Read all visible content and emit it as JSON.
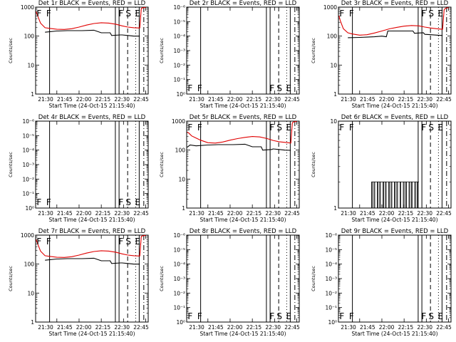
{
  "figure": {
    "x_label": "Start Time (24-Oct-15 21:15:40)",
    "y_label": "Counts/sec",
    "x_tick_labels": [
      "21:30",
      "21:45",
      "22:00",
      "22:15",
      "22:30",
      "22:45"
    ],
    "event_markers": [
      "F",
      "F",
      "F",
      "S",
      "E"
    ]
  },
  "chart_data": [
    {
      "type": "line",
      "title": "Det 1r BLACK = Events, RED = LLD",
      "y_scale": "log",
      "xlim": [
        15.67,
        91.67
      ],
      "ylim": [
        1,
        1000
      ],
      "y_tick_labels": [
        "1",
        "10",
        "100",
        "1000"
      ],
      "events": {
        "x": [
          22,
          30,
          31,
          37,
          47,
          55,
          60,
          66,
          67,
          73,
          74,
          78,
          82,
          86
        ],
        "y": [
          136,
          150,
          150,
          154,
          154,
          160,
          130,
          130,
          105,
          110,
          110,
          105,
          100,
          100
        ]
      },
      "lld": {
        "x": [
          16,
          17,
          19,
          22,
          25,
          30,
          35,
          40,
          45,
          50,
          55,
          60,
          65,
          70,
          74,
          78,
          82,
          86,
          87,
          88,
          90
        ],
        "y": [
          700,
          500,
          280,
          195,
          185,
          172,
          170,
          180,
          205,
          240,
          272,
          290,
          282,
          255,
          225,
          205,
          195,
          190,
          900,
          950,
          980
        ]
      }
    },
    {
      "type": "line",
      "title": "Det 2r BLACK = Events, RED = LLD",
      "y_scale": "log",
      "xlim": [
        15.67,
        91.67
      ],
      "ylim": [
        1,
        1000000
      ],
      "y_tick_labels": [
        "10⁰",
        "10⁻¹",
        "10⁻²",
        "10⁻³",
        "10⁻⁴",
        "10⁻⁵",
        "10⁻⁶"
      ],
      "events": null,
      "lld": null
    },
    {
      "type": "line",
      "title": "Det 3r BLACK = Events, RED = LLD",
      "y_scale": "log",
      "xlim": [
        15.67,
        91.67
      ],
      "ylim": [
        1,
        1000
      ],
      "y_tick_labels": [
        "1",
        "10",
        "100",
        "1000"
      ],
      "events": {
        "x": [
          22,
          30,
          35,
          40,
          45,
          48,
          49,
          55,
          60,
          66,
          67,
          73,
          74,
          78,
          82,
          86
        ],
        "y": [
          88,
          90,
          92,
          95,
          100,
          95,
          150,
          150,
          150,
          150,
          125,
          130,
          115,
          112,
          108,
          105
        ]
      },
      "lld": {
        "x": [
          16,
          17,
          19,
          22,
          25,
          30,
          35,
          40,
          45,
          50,
          55,
          60,
          65,
          70,
          74,
          78,
          82,
          86,
          87,
          88,
          90
        ],
        "y": [
          500,
          330,
          180,
          130,
          118,
          108,
          112,
          128,
          150,
          178,
          200,
          220,
          232,
          225,
          205,
          190,
          180,
          172,
          800,
          920,
          960
        ]
      }
    },
    {
      "type": "line",
      "title": "Det 4r BLACK = Events, RED = LLD",
      "y_scale": "log",
      "xlim": [
        15.67,
        91.67
      ],
      "ylim": [
        1,
        1000000
      ],
      "y_tick_labels": [
        "10⁰",
        "10⁻¹",
        "10⁻²",
        "10⁻³",
        "10⁻⁴",
        "10⁻⁵",
        "10⁻⁶"
      ],
      "events": null,
      "lld": null
    },
    {
      "type": "line",
      "title": "Det 5r BLACK = Events, RED = LLD",
      "y_scale": "log",
      "xlim": [
        15.67,
        91.67
      ],
      "ylim": [
        1,
        1000
      ],
      "y_tick_labels": [
        "1",
        "10",
        "100",
        "1000"
      ],
      "events": {
        "x": [
          16,
          18,
          22,
          30,
          31,
          37,
          47,
          55,
          60,
          66,
          67,
          73,
          74,
          78,
          82,
          86
        ],
        "y": [
          125,
          150,
          140,
          150,
          150,
          154,
          154,
          160,
          130,
          130,
          100,
          105,
          110,
          105,
          100,
          98
        ]
      },
      "lld": {
        "x": [
          16,
          17,
          19,
          22,
          25,
          30,
          35,
          40,
          45,
          50,
          55,
          60,
          65,
          70,
          74,
          78,
          82,
          86,
          87,
          88,
          90
        ],
        "y": [
          420,
          390,
          310,
          260,
          220,
          180,
          175,
          190,
          220,
          250,
          275,
          295,
          285,
          250,
          215,
          195,
          185,
          175,
          880,
          950,
          980
        ]
      }
    },
    {
      "type": "line",
      "title": "Det 6r BLACK = Events, RED = LLD",
      "y_scale": "log",
      "xlim": [
        15.67,
        91.67
      ],
      "ylim": [
        1,
        10
      ],
      "y_tick_labels": [
        "1",
        "10"
      ],
      "events": null,
      "lld": null,
      "events_spikes": {
        "x_range": [
          38,
          70
        ],
        "y_low": 1,
        "y_high": 2
      }
    },
    {
      "type": "line",
      "title": "Det 7r BLACK = Events, RED = LLD",
      "y_scale": "log",
      "xlim": [
        15.67,
        91.67
      ],
      "ylim": [
        1,
        1000
      ],
      "y_tick_labels": [
        "1",
        "10",
        "100",
        "1000"
      ],
      "events": {
        "x": [
          22,
          30,
          31,
          37,
          47,
          55,
          60,
          66,
          67,
          73,
          74,
          78,
          82,
          86
        ],
        "y": [
          136,
          150,
          150,
          154,
          154,
          160,
          130,
          130,
          105,
          110,
          110,
          105,
          100,
          100
        ]
      },
      "lld": {
        "x": [
          16,
          17,
          19,
          22,
          25,
          30,
          35,
          40,
          45,
          50,
          55,
          60,
          65,
          70,
          74,
          78,
          82,
          86,
          87,
          88,
          90
        ],
        "y": [
          700,
          500,
          280,
          195,
          185,
          172,
          170,
          180,
          205,
          240,
          272,
          290,
          282,
          255,
          225,
          205,
          195,
          190,
          900,
          950,
          980
        ]
      }
    },
    {
      "type": "line",
      "title": "Det 8r BLACK = Events, RED = LLD",
      "y_scale": "log",
      "xlim": [
        15.67,
        91.67
      ],
      "ylim": [
        1,
        1000000
      ],
      "y_tick_labels": [
        "10⁰",
        "10⁻¹",
        "10⁻²",
        "10⁻³",
        "10⁻⁴",
        "10⁻⁵",
        "10⁻⁶"
      ],
      "events": null,
      "lld": null
    },
    {
      "type": "line",
      "title": "Det 9r BLACK = Events, RED = LLD",
      "y_scale": "log",
      "xlim": [
        15.67,
        91.67
      ],
      "ylim": [
        1,
        1000000
      ],
      "y_tick_labels": [
        "10⁰",
        "10⁻¹",
        "10⁻²",
        "10⁻³",
        "10⁻⁴",
        "10⁻⁵",
        "10⁻⁶"
      ],
      "events": null,
      "lld": null
    }
  ],
  "vertical_lines": {
    "solid": [
      25.1,
      69.5,
      72.0,
      85.6
    ],
    "dashed": 77.8,
    "dotted": 83.2,
    "dashdot": 88.7
  },
  "x_ticks": [
    30,
    45,
    60,
    75,
    90
  ],
  "colors": {
    "events": "#000000",
    "lld": "#e00000"
  }
}
